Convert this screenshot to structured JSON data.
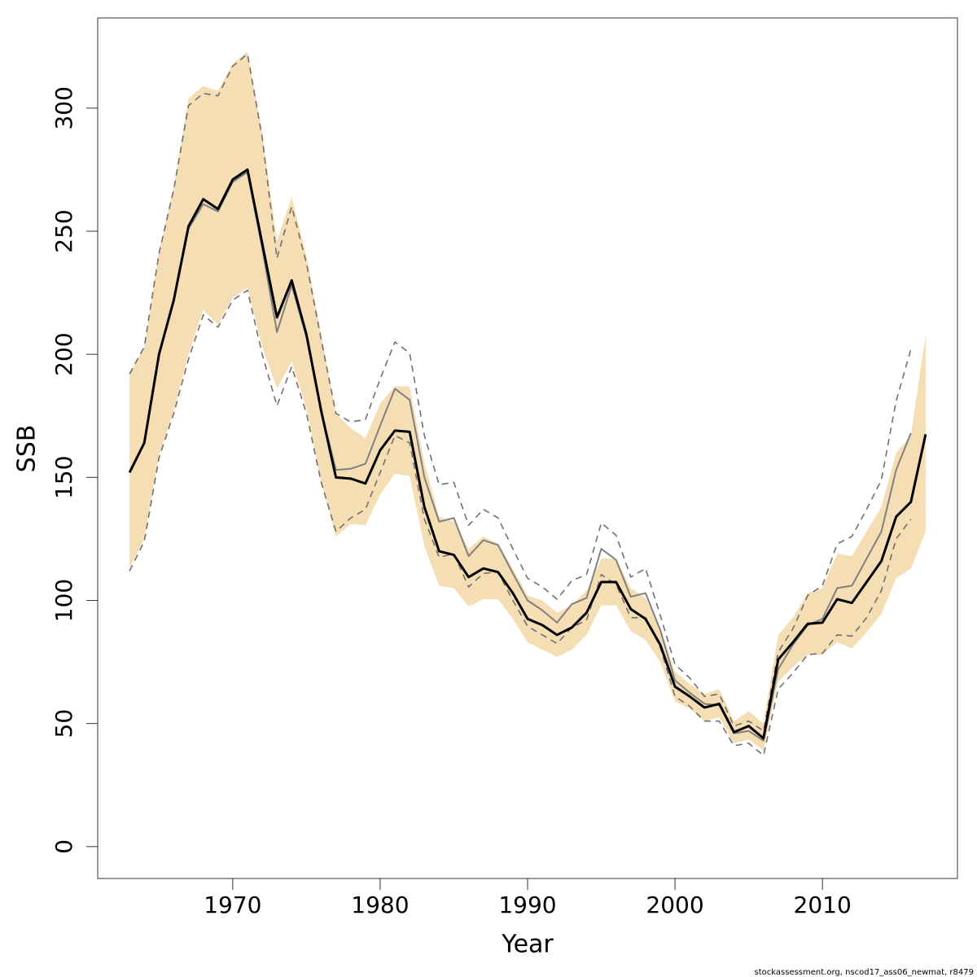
{
  "chart_data": {
    "type": "line",
    "x_label": "Year",
    "y_label": "SSB",
    "footnote": "stockassessment.org, nscod17_ass06_newmat, r8479",
    "xlim": [
      1960.84,
      2019.16
    ],
    "ylim": [
      -12.95,
      336.65
    ],
    "xticks": [
      1970,
      1980,
      1990,
      2000,
      2010
    ],
    "yticks": [
      0,
      50,
      100,
      150,
      200,
      250,
      300
    ],
    "grid": false,
    "x": [
      1963,
      1964,
      1965,
      1966,
      1967,
      1968,
      1969,
      1970,
      1971,
      1972,
      1973,
      1974,
      1975,
      1976,
      1977,
      1978,
      1979,
      1980,
      1981,
      1982,
      1983,
      1984,
      1985,
      1986,
      1987,
      1988,
      1989,
      1990,
      1991,
      1992,
      1993,
      1994,
      1995,
      1996,
      1997,
      1998,
      1999,
      2000,
      2001,
      2002,
      2003,
      2004,
      2005,
      2006,
      2007,
      2008,
      2009,
      2010,
      2011,
      2012,
      2013,
      2014,
      2015,
      2016,
      2017
    ],
    "band": {
      "color": "#f5deb3",
      "upper": [
        192,
        203,
        242,
        268,
        304,
        309,
        307,
        318,
        323,
        290,
        246,
        264,
        240,
        208,
        176,
        170,
        166,
        180,
        187,
        187,
        156,
        134,
        132,
        121,
        126,
        123,
        113,
        102,
        100,
        95,
        98,
        104,
        117,
        117,
        105,
        101,
        89,
        71,
        66,
        62,
        64,
        51,
        55,
        50,
        86,
        93,
        103,
        105,
        119,
        118,
        128,
        138,
        160,
        167,
        208
      ],
      "lower": [
        113,
        125,
        159,
        177,
        200,
        218,
        212,
        223,
        227,
        203,
        186,
        197,
        178,
        148,
        126,
        131,
        130.5,
        143,
        151.5,
        150.5,
        122,
        106,
        105,
        97.5,
        100.5,
        100.5,
        92.5,
        83,
        80,
        77,
        80,
        86,
        98,
        98,
        87.5,
        84,
        75,
        59,
        56,
        51,
        52.5,
        42,
        43.5,
        39,
        67,
        73,
        78,
        78,
        83,
        80.5,
        87,
        94.5,
        109,
        113,
        128
      ]
    },
    "series": [
      {
        "color": "#808080",
        "style": "solid",
        "width": 2,
        "values": [
          152,
          164,
          200,
          222,
          251,
          261,
          258,
          270,
          274,
          243,
          209,
          228,
          207,
          177,
          153,
          153.5,
          155.5,
          171,
          186,
          181.5,
          150,
          132,
          133.5,
          118,
          124.5,
          122.5,
          111,
          100,
          96,
          91,
          98.5,
          101,
          121,
          116.5,
          101.5,
          103,
          88,
          67.5,
          62.5,
          58,
          57.5,
          46,
          47,
          43,
          72,
          82,
          90,
          92.5,
          105,
          106,
          117,
          128,
          153,
          168,
          null
        ]
      },
      {
        "color": "#707070",
        "style": "dashed",
        "width": 1.6,
        "values": [
          192,
          203,
          241,
          267,
          301,
          306,
          305,
          317,
          322,
          288,
          239,
          260,
          237,
          206,
          176,
          172.5,
          173.5,
          190,
          205,
          200.5,
          167,
          147,
          148,
          130.5,
          137,
          133.5,
          121,
          109,
          105.5,
          100.5,
          108,
          110.5,
          131.5,
          126.5,
          109.5,
          113,
          94,
          74,
          68.5,
          61,
          62,
          49,
          51,
          47,
          79,
          88.5,
          102,
          106,
          123,
          126,
          137,
          149,
          181,
          202,
          null
        ]
      },
      {
        "color": "#707070",
        "style": "dashed",
        "width": 1.6,
        "values": [
          112,
          124,
          158,
          176,
          198,
          216,
          211,
          222,
          226,
          200,
          179,
          195,
          176,
          148,
          128,
          133.5,
          137,
          152,
          167,
          164,
          133,
          117.5,
          119,
          105.5,
          111,
          111.5,
          100,
          89.5,
          86,
          82.5,
          89,
          92,
          110.5,
          106.5,
          93,
          93,
          81,
          61,
          57,
          51,
          51,
          41,
          42,
          37,
          64,
          70.5,
          78,
          78.5,
          86,
          85.5,
          93,
          104,
          125,
          133,
          null
        ]
      },
      {
        "color": "#000000",
        "style": "solid",
        "width": 3,
        "values": [
          152,
          164,
          200,
          222,
          252,
          263,
          259,
          271,
          275,
          245,
          215,
          230,
          208,
          177,
          150,
          149.5,
          147.5,
          161,
          169,
          168.5,
          138,
          120,
          118.5,
          109.5,
          113,
          111.5,
          103,
          92.5,
          90,
          86,
          89,
          95,
          107.5,
          107.5,
          96.5,
          92.5,
          82,
          65,
          61,
          56.5,
          58,
          46.5,
          49,
          44,
          76,
          83,
          90.5,
          91,
          100.5,
          99,
          107.5,
          116,
          134,
          140,
          167.5
        ]
      }
    ]
  }
}
